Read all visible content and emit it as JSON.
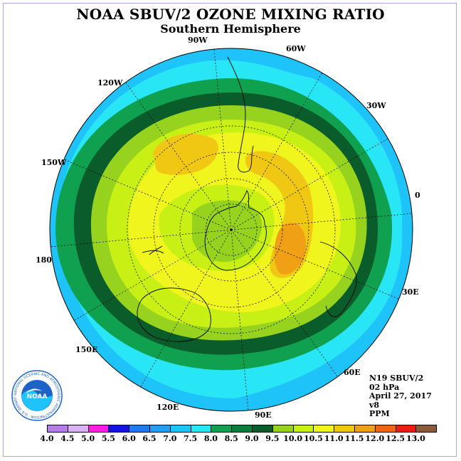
{
  "title": "NOAA SBUV/2 OZONE MIXING RATIO",
  "subtitle": "Southern Hemisphere",
  "longitude_labels": {
    "lon_90w": "90W",
    "lon_60w": "60W",
    "lon_120w": "120W",
    "lon_30w": "30W",
    "lon_150w": "150W",
    "lon_0": "0",
    "lon_180": "180",
    "lon_30e": "30E",
    "lon_150e": "150E",
    "lon_60e": "60E",
    "lon_120e": "120E",
    "lon_90e": "90E"
  },
  "info": {
    "instrument": "N19 SBUV/2",
    "level": "02 hPa",
    "date": "April 27, 2017",
    "version": "v8",
    "units": "PPM"
  },
  "logo": {
    "center_text": "NOAA",
    "ring_text": "NATIONAL OCEANIC AND ATMOSPHERIC ADMINISTRATION · U.S. DEPARTMENT OF COMMERCE"
  },
  "colorbar": {
    "labels": [
      "4.0",
      "4.5",
      "5.0",
      "5.5",
      "6.0",
      "6.5",
      "7.0",
      "7.5",
      "8.0",
      "8.5",
      "9.0",
      "9.5",
      "10.0",
      "10.5",
      "11.0",
      "11.5",
      "12.0",
      "12.5",
      "13.0"
    ],
    "colors": [
      "#b57be9",
      "#dab0f4",
      "#ff1ee6",
      "#1414e0",
      "#1e78f0",
      "#1ea0f5",
      "#1ec3fa",
      "#28e6f5",
      "#0fa050",
      "#0a7d3c",
      "#0a5c2a",
      "#96d21e",
      "#c8f014",
      "#f0f51e",
      "#f0c814",
      "#f0a014",
      "#f06414",
      "#e61e14",
      "#8c5a37"
    ]
  },
  "ozone_field": {
    "description_units": "PPM",
    "rings": [
      {
        "level": "7.0",
        "color": "#1ec3fa"
      },
      {
        "level": "7.5",
        "color": "#28e6f5"
      },
      {
        "level": "8.0",
        "color": "#0fa050"
      },
      {
        "level": "8.5",
        "color": "#0a7d3c"
      },
      {
        "level": "9.0",
        "color": "#0a5c2a"
      },
      {
        "level": "9.5",
        "color": "#96d21e"
      },
      {
        "level": "10.0",
        "color": "#c8f014"
      },
      {
        "level": "10.5",
        "color": "#f0f51e"
      },
      {
        "level": "11.0",
        "color": "#f0c814"
      },
      {
        "level": "11.5",
        "color": "#f0a014"
      }
    ]
  }
}
